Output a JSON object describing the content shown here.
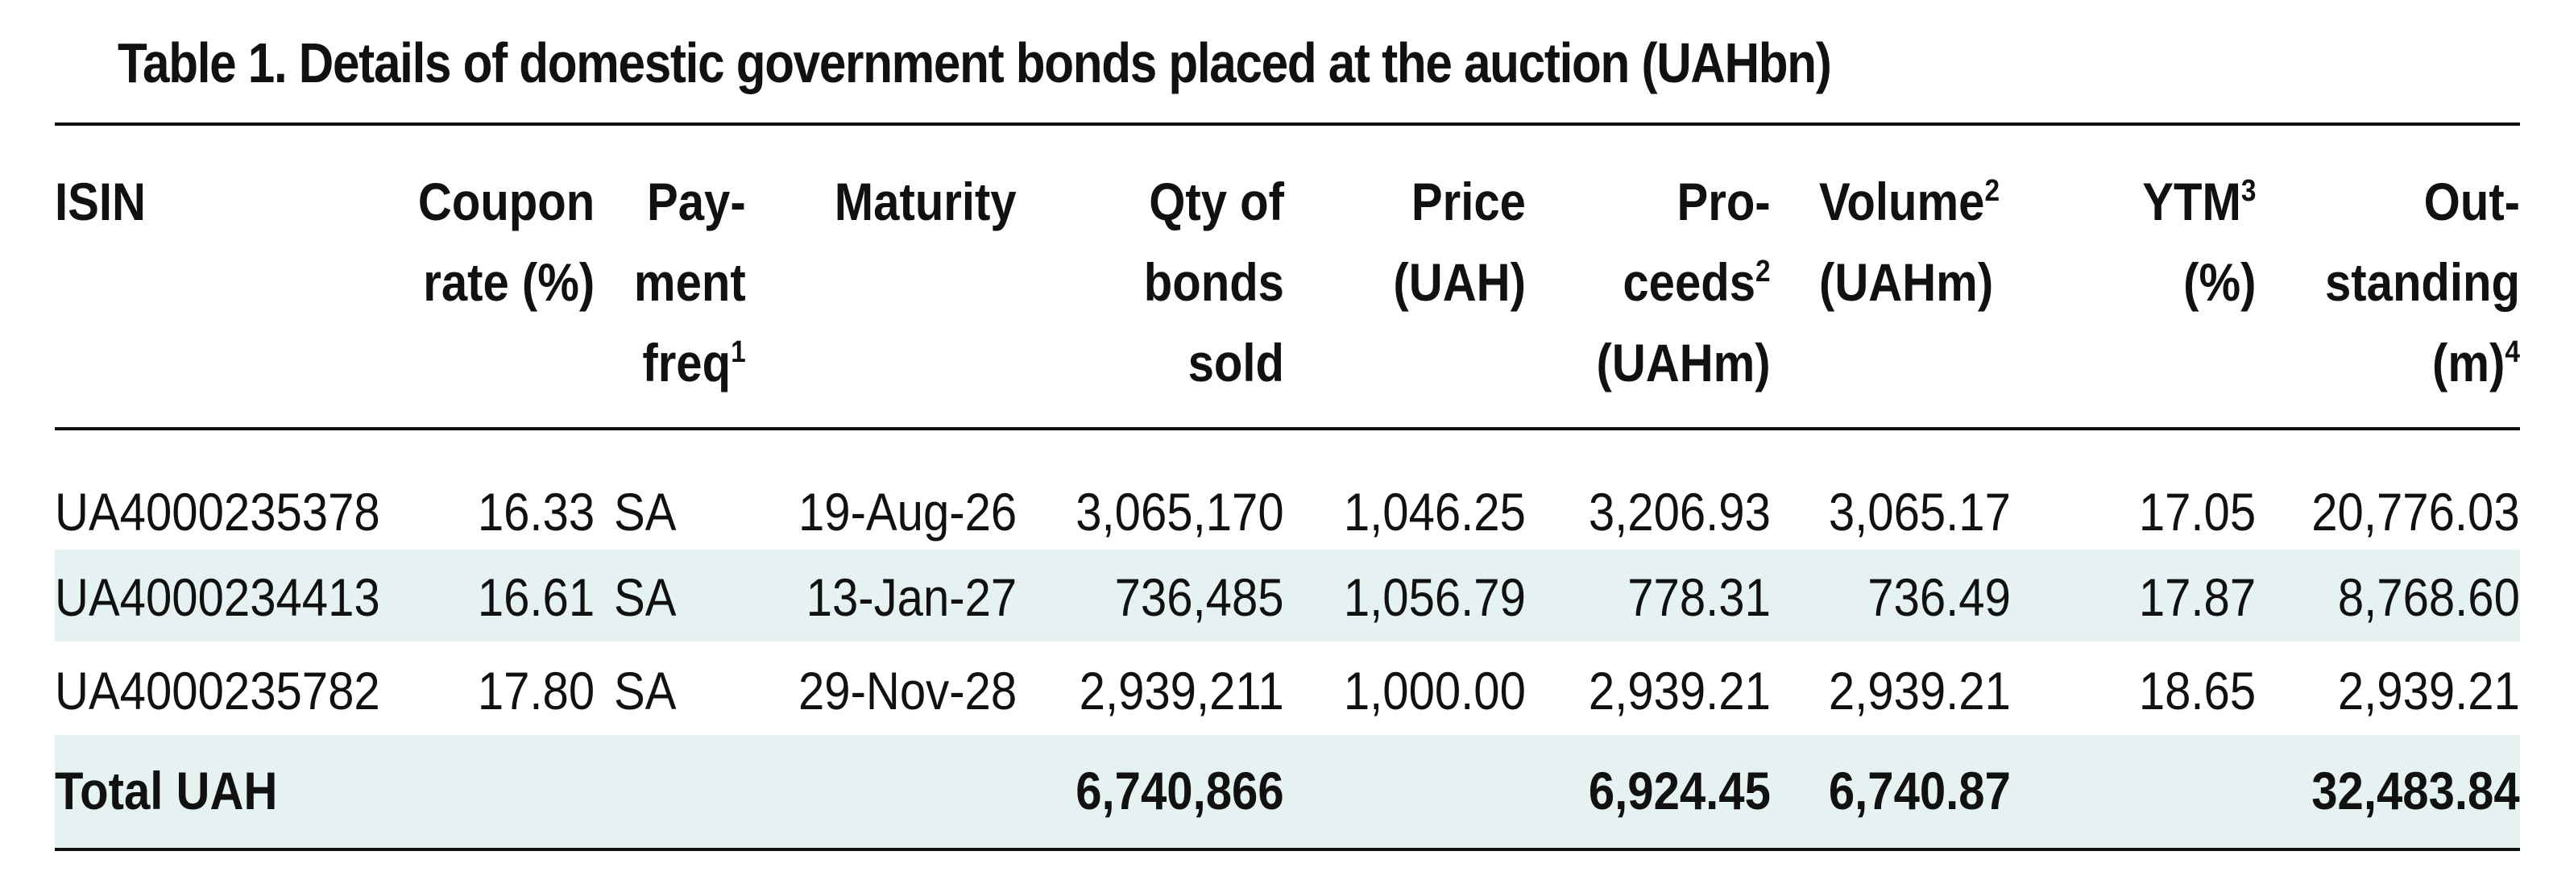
{
  "title": "Table 1. Details of domestic government bonds placed at the auction (UAHbn)",
  "headers": {
    "isin": "ISIN",
    "coupon_l1": "Coupon",
    "coupon_l2": "rate (%)",
    "pay_l1": "Pay-",
    "pay_l2": "ment",
    "pay_l3": "freq",
    "pay_sup": "1",
    "maturity": "Maturity",
    "qty_l1": "Qty of",
    "qty_l2": "bonds",
    "qty_l3": "sold",
    "price_l1": "Price",
    "price_l2": "(UAH)",
    "proc_l1": "Pro-",
    "proc_l2": "ceeds",
    "proc_sup": "2",
    "proc_l3": "(UAHm)",
    "vol_l1": "Volume",
    "vol_sup": "2",
    "vol_l2": "(UAHm)",
    "ytm_l1": "YTM",
    "ytm_sup": "3",
    "ytm_l2": "(%)",
    "out_l1": "Out-",
    "out_l2": "standing",
    "out_l3": "(m)",
    "out_sup": "4"
  },
  "rows": [
    {
      "isin": "UA4000235378",
      "coupon": "16.33",
      "freq": "SA",
      "maturity": "19-Aug-26",
      "qty": "3,065,170",
      "price": "1,046.25",
      "proceeds": "3,206.93",
      "volume": "3,065.17",
      "ytm": "17.05",
      "outstanding": "20,776.03"
    },
    {
      "isin": "UA4000234413",
      "coupon": "16.61",
      "freq": "SA",
      "maturity": "13-Jan-27",
      "qty": "736,485",
      "price": "1,056.79",
      "proceeds": "778.31",
      "volume": "736.49",
      "ytm": "17.87",
      "outstanding": "8,768.60"
    },
    {
      "isin": "UA4000235782",
      "coupon": "17.80",
      "freq": "SA",
      "maturity": "29-Nov-28",
      "qty": "2,939,211",
      "price": "1,000.00",
      "proceeds": "2,939.21",
      "volume": "2,939.21",
      "ytm": "18.65",
      "outstanding": "2,939.21"
    }
  ],
  "total": {
    "label": "Total UAH",
    "qty": "6,740,866",
    "proceeds": "6,924.45",
    "volume": "6,740.87",
    "outstanding": "32,483.84"
  },
  "colors": {
    "text": "#111111",
    "shade": "#e6f2f2",
    "rule": "#111111"
  }
}
